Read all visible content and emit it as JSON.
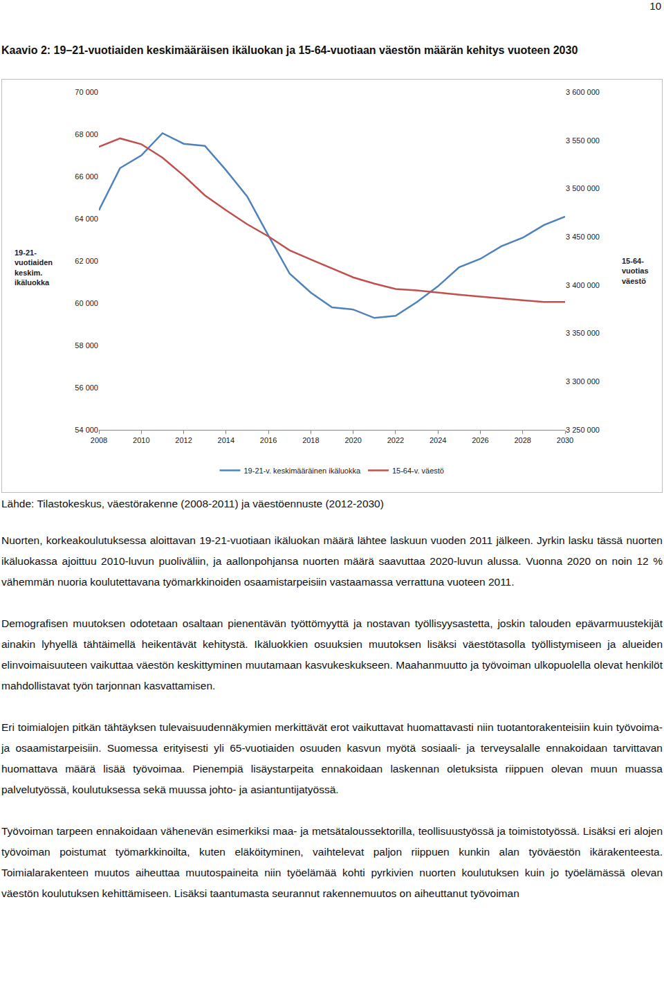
{
  "page_number": "10",
  "caption": "Kaavio 2: 19–21-vuotiaiden keskimääräisen ikäluokan ja 15-64-vuotiaan väestön määrän kehitys vuoteen 2030",
  "chart_data": {
    "type": "line",
    "ylabel_lines": [
      "19-21-",
      "vuotiaiden",
      "keskim.",
      "ikäluokka"
    ],
    "y2label_lines": [
      "15-64-",
      "vuotias",
      "väestö"
    ],
    "x": [
      2008,
      2009,
      2010,
      2011,
      2012,
      2013,
      2014,
      2015,
      2016,
      2017,
      2018,
      2019,
      2020,
      2021,
      2022,
      2023,
      2024,
      2025,
      2026,
      2027,
      2028,
      2029,
      2030
    ],
    "xlim": [
      2008,
      2030
    ],
    "xticks": [
      2008,
      2010,
      2012,
      2014,
      2016,
      2018,
      2020,
      2022,
      2024,
      2026,
      2028,
      2030
    ],
    "ylim": [
      54000,
      70000
    ],
    "yticks": [
      {
        "value": 54000,
        "label": "54 000"
      },
      {
        "value": 56000,
        "label": "56 000"
      },
      {
        "value": 58000,
        "label": "58 000"
      },
      {
        "value": 60000,
        "label": "60 000"
      },
      {
        "value": 62000,
        "label": "62 000"
      },
      {
        "value": 64000,
        "label": "64 000"
      },
      {
        "value": 66000,
        "label": "66 000"
      },
      {
        "value": 68000,
        "label": "68 000"
      },
      {
        "value": 70000,
        "label": "70 000"
      }
    ],
    "y2lim": [
      3250000,
      3600000
    ],
    "y2ticks": [
      {
        "value": 3250000,
        "label": "3 250 000"
      },
      {
        "value": 3300000,
        "label": "3 300 000"
      },
      {
        "value": 3350000,
        "label": "3 350 000"
      },
      {
        "value": 3400000,
        "label": "3 400 000"
      },
      {
        "value": 3450000,
        "label": "3 450 000"
      },
      {
        "value": 3500000,
        "label": "3 500 000"
      },
      {
        "value": 3550000,
        "label": "3 550 000"
      },
      {
        "value": 3600000,
        "label": "3 600 000"
      }
    ],
    "grid": false,
    "legend": "bottom",
    "series": [
      {
        "name": "19-21-v. keskimääräinen ikäluokka",
        "color": "#4f81bd",
        "values": [
          64400,
          66400,
          67000,
          68050,
          67550,
          67450,
          66300,
          65050,
          63200,
          61400,
          60500,
          59800,
          59700,
          59300,
          59400,
          60050,
          60800,
          61700,
          62100,
          62700,
          63100,
          63700,
          64100
        ]
      },
      {
        "name": "15-64-v. väestö",
        "color": "#c0504d",
        "axis": "y2",
        "values": [
          3543200,
          3552000,
          3546000,
          3532000,
          3513500,
          3493000,
          3477500,
          3463000,
          3450500,
          3436000,
          3426500,
          3417000,
          3408000,
          3401500,
          3396000,
          3394500,
          3392000,
          3390000,
          3388000,
          3386000,
          3384000,
          3382500,
          3382500
        ]
      }
    ]
  },
  "source": "Lähde: Tilastokeskus, väestörakenne (2008-2011) ja väestöennuste (2012-2030)",
  "paragraphs": [
    "Nuorten, korkeakoulutuksessa aloittavan 19-21-vuotiaan ikäluokan määrä lähtee laskuun vuoden 2011 jälkeen. Jyrkin lasku tässä nuorten ikäluokassa ajoittuu 2010-luvun puoliväliin, ja aallonpohjansa nuorten määrä saavuttaa 2020-luvun alussa. Vuonna 2020 on noin 12 % vähemmän nuoria koulutettavana työmarkkinoiden osaamistarpeisiin vastaamassa verrattuna vuoteen 2011.",
    "Demografisen muutoksen odotetaan osaltaan pienentävän työttömyyttä ja nostavan työllisyysastetta, joskin talouden epävarmuustekijät ainakin lyhyellä tähtäimellä heikentävät kehitystä. Ikäluokkien osuuksien muutoksen lisäksi väestötasolla työllistymiseen ja alueiden elinvoimaisuuteen vaikuttaa väestön keskittyminen muutamaan kasvukeskukseen. Maahanmuutto ja työvoiman ulkopuolella olevat henkilöt mahdollistavat työn tarjonnan kasvattamisen.",
    "Eri toimialojen pitkän tähtäyksen tulevaisuudennäkymien merkittävät erot vaikuttavat huomattavasti niin tuotantorakenteisiin kuin työvoima- ja osaamistarpeisiin. Suomessa erityisesti yli 65-vuotiaiden osuuden kasvun myötä sosiaali- ja terveysalalle ennakoidaan tarvittavan huomattava määrä lisää työvoimaa. Pienempiä lisäystarpeita ennakoidaan laskennan oletuksista riippuen olevan muun muassa palvelutyössä, koulutuksessa sekä muussa johto- ja asiantuntijatyössä.",
    "Työvoiman tarpeen ennakoidaan vähenevän esimerkiksi maa- ja metsätaloussektorilla, teollisuustyössä ja toimistotyössä. Lisäksi eri alojen työvoiman poistumat työmarkkinoilta, kuten eläköityminen, vaihtelevat paljon riippuen kunkin alan työväestön ikärakenteesta. Toimialarakenteen muutos aiheuttaa muutospaineita niin työelämää kohti pyrkivien nuorten koulutuksen kuin jo työelämässä olevan väestön koulutuksen kehittämiseen. Lisäksi taantumasta seurannut rakennemuutos on aiheuttanut työvoiman"
  ]
}
